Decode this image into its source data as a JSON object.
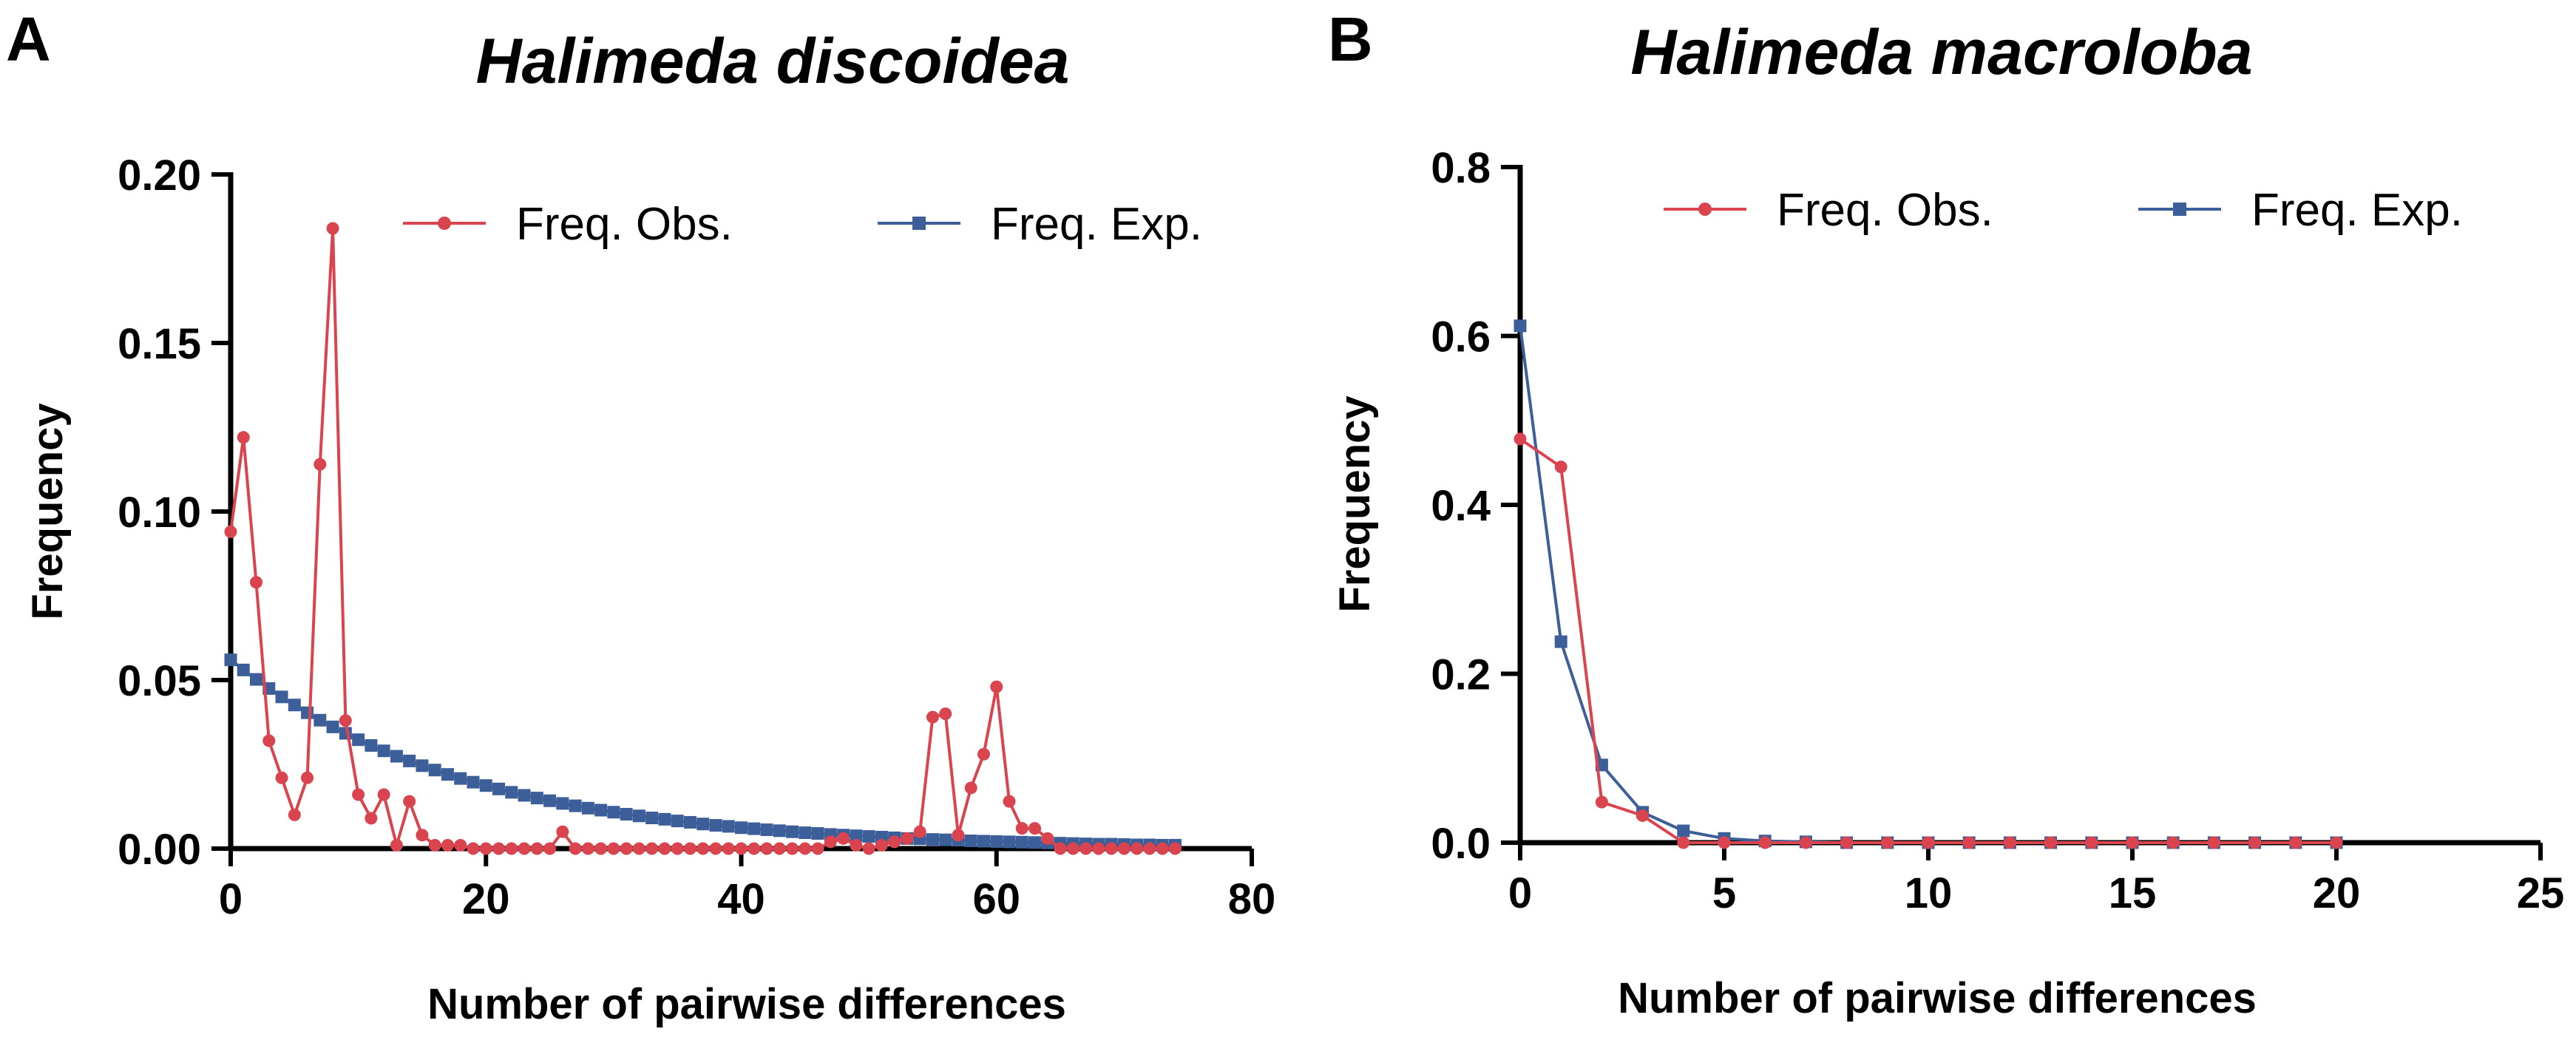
{
  "figure": {
    "panels": [
      {
        "label": "A",
        "chart_id": "halimeda-discoidea"
      },
      {
        "label": "B",
        "chart_id": "halimeda-macroloba"
      }
    ]
  },
  "chart_data": [
    {
      "type": "line",
      "title": "Halimeda discoidea",
      "xlabel": "Number of pairwise differences",
      "ylabel": "Frequency",
      "xlim": [
        0,
        80
      ],
      "ylim": [
        0,
        0.2
      ],
      "xticks": [
        0,
        20,
        40,
        60,
        80
      ],
      "yticks": [
        0.0,
        0.05,
        0.1,
        0.15,
        0.2
      ],
      "xtick_labels": [
        "0",
        "20",
        "40",
        "60",
        "80"
      ],
      "ytick_labels": [
        "0.00",
        "0.05",
        "0.10",
        "0.15",
        "0.20"
      ],
      "legend_position": "top-right",
      "series": [
        {
          "name": "Freq. Obs.",
          "color": "#d9444f",
          "marker": "circle",
          "x": [
            0,
            1,
            2,
            3,
            4,
            5,
            6,
            7,
            8,
            9,
            10,
            11,
            12,
            13,
            14,
            15,
            16,
            17,
            18,
            19,
            20,
            21,
            22,
            23,
            24,
            25,
            26,
            27,
            28,
            29,
            30,
            31,
            32,
            33,
            34,
            35,
            36,
            37,
            38,
            39,
            40,
            41,
            42,
            43,
            44,
            45,
            46,
            47,
            48,
            49,
            50,
            51,
            52,
            53,
            54,
            55,
            56,
            57,
            58,
            59,
            60,
            61,
            62,
            63,
            64,
            65,
            66,
            67,
            68,
            69,
            70,
            71,
            72,
            73,
            74
          ],
          "values": [
            0.094,
            0.122,
            0.079,
            0.032,
            0.021,
            0.01,
            0.021,
            0.114,
            0.184,
            0.038,
            0.016,
            0.009,
            0.016,
            0.001,
            0.014,
            0.004,
            0.001,
            0.001,
            0.001,
            0.0,
            0.0,
            0.0,
            0.0,
            0.0,
            0.0,
            0.0,
            0.005,
            0.0,
            0.0,
            0.0,
            0.0,
            0.0,
            0.0,
            0.0,
            0.0,
            0.0,
            0.0,
            0.0,
            0.0,
            0.0,
            0.0,
            0.0,
            0.0,
            0.0,
            0.0,
            0.0,
            0.0,
            0.002,
            0.003,
            0.001,
            0.0,
            0.001,
            0.002,
            0.003,
            0.005,
            0.039,
            0.04,
            0.004,
            0.018,
            0.028,
            0.048,
            0.014,
            0.006,
            0.006,
            0.003,
            0.0,
            0.0,
            0.0,
            0.0,
            0.0,
            0.0,
            0.0,
            0.0,
            0.0,
            0.0
          ]
        },
        {
          "name": "Freq. Exp.",
          "color": "#3c5f99",
          "marker": "square",
          "x": [
            0,
            1,
            2,
            3,
            4,
            5,
            6,
            7,
            8,
            9,
            10,
            11,
            12,
            13,
            14,
            15,
            16,
            17,
            18,
            19,
            20,
            21,
            22,
            23,
            24,
            25,
            26,
            27,
            28,
            29,
            30,
            31,
            32,
            33,
            34,
            35,
            36,
            37,
            38,
            39,
            40,
            41,
            42,
            43,
            44,
            45,
            46,
            47,
            48,
            49,
            50,
            51,
            52,
            53,
            54,
            55,
            56,
            57,
            58,
            59,
            60,
            61,
            62,
            63,
            64,
            65,
            66,
            67,
            68,
            69,
            70,
            71,
            72,
            73,
            74
          ],
          "values": [
            0.056,
            0.053,
            0.0502,
            0.0475,
            0.045,
            0.0426,
            0.0403,
            0.0381,
            0.0361,
            0.0342,
            0.0323,
            0.0306,
            0.029,
            0.0274,
            0.026,
            0.0246,
            0.0233,
            0.022,
            0.0208,
            0.0197,
            0.0187,
            0.0177,
            0.0167,
            0.0158,
            0.015,
            0.0142,
            0.0134,
            0.0127,
            0.012,
            0.0114,
            0.0108,
            0.0102,
            0.0097,
            0.0091,
            0.0087,
            0.0082,
            0.0078,
            0.0073,
            0.0069,
            0.0066,
            0.0062,
            0.0059,
            0.0056,
            0.0053,
            0.005,
            0.0047,
            0.0045,
            0.0042,
            0.004,
            0.0038,
            0.0036,
            0.0034,
            0.0032,
            0.003,
            0.0029,
            0.0027,
            0.0026,
            0.0025,
            0.0023,
            0.0022,
            0.0021,
            0.002,
            0.0019,
            0.0018,
            0.0017,
            0.0016,
            0.0015,
            0.0014,
            0.0013,
            0.0013,
            0.0012,
            0.0011,
            0.0011,
            0.001,
            0.001
          ]
        }
      ]
    },
    {
      "type": "line",
      "title": "Halimeda macroloba",
      "xlabel": "Number of pairwise differences",
      "ylabel": "Frequency",
      "xlim": [
        0,
        25
      ],
      "ylim": [
        0,
        0.8
      ],
      "xticks": [
        0,
        5,
        10,
        15,
        20,
        25
      ],
      "yticks": [
        0.0,
        0.2,
        0.4,
        0.6,
        0.8
      ],
      "xtick_labels": [
        "0",
        "5",
        "10",
        "15",
        "20",
        "25"
      ],
      "ytick_labels": [
        "0.0",
        "0.2",
        "0.4",
        "0.6",
        "0.8"
      ],
      "legend_position": "top-right",
      "series": [
        {
          "name": "Freq. Obs.",
          "color": "#d9444f",
          "marker": "circle",
          "x": [
            0,
            1,
            2,
            3,
            4,
            5,
            6,
            7,
            8,
            9,
            10,
            11,
            12,
            13,
            14,
            15,
            16,
            17,
            18,
            19,
            20
          ],
          "values": [
            0.478,
            0.445,
            0.048,
            0.032,
            0.0,
            0.0,
            0.0,
            0.0,
            0.0,
            0.0,
            0.0,
            0.0,
            0.0,
            0.0,
            0.0,
            0.0,
            0.0,
            0.0,
            0.0,
            0.0,
            0.0
          ]
        },
        {
          "name": "Freq. Exp.",
          "color": "#3c5f99",
          "marker": "square",
          "x": [
            0,
            1,
            2,
            3,
            4,
            5,
            6,
            7,
            8,
            9,
            10,
            11,
            12,
            13,
            14,
            15,
            16,
            17,
            18,
            19,
            20
          ],
          "values": [
            0.612,
            0.238,
            0.092,
            0.036,
            0.014,
            0.005,
            0.002,
            0.001,
            0.0,
            0.0,
            0.0,
            0.0,
            0.0,
            0.0,
            0.0,
            0.0,
            0.0,
            0.0,
            0.0,
            0.0,
            0.0
          ]
        }
      ]
    }
  ]
}
